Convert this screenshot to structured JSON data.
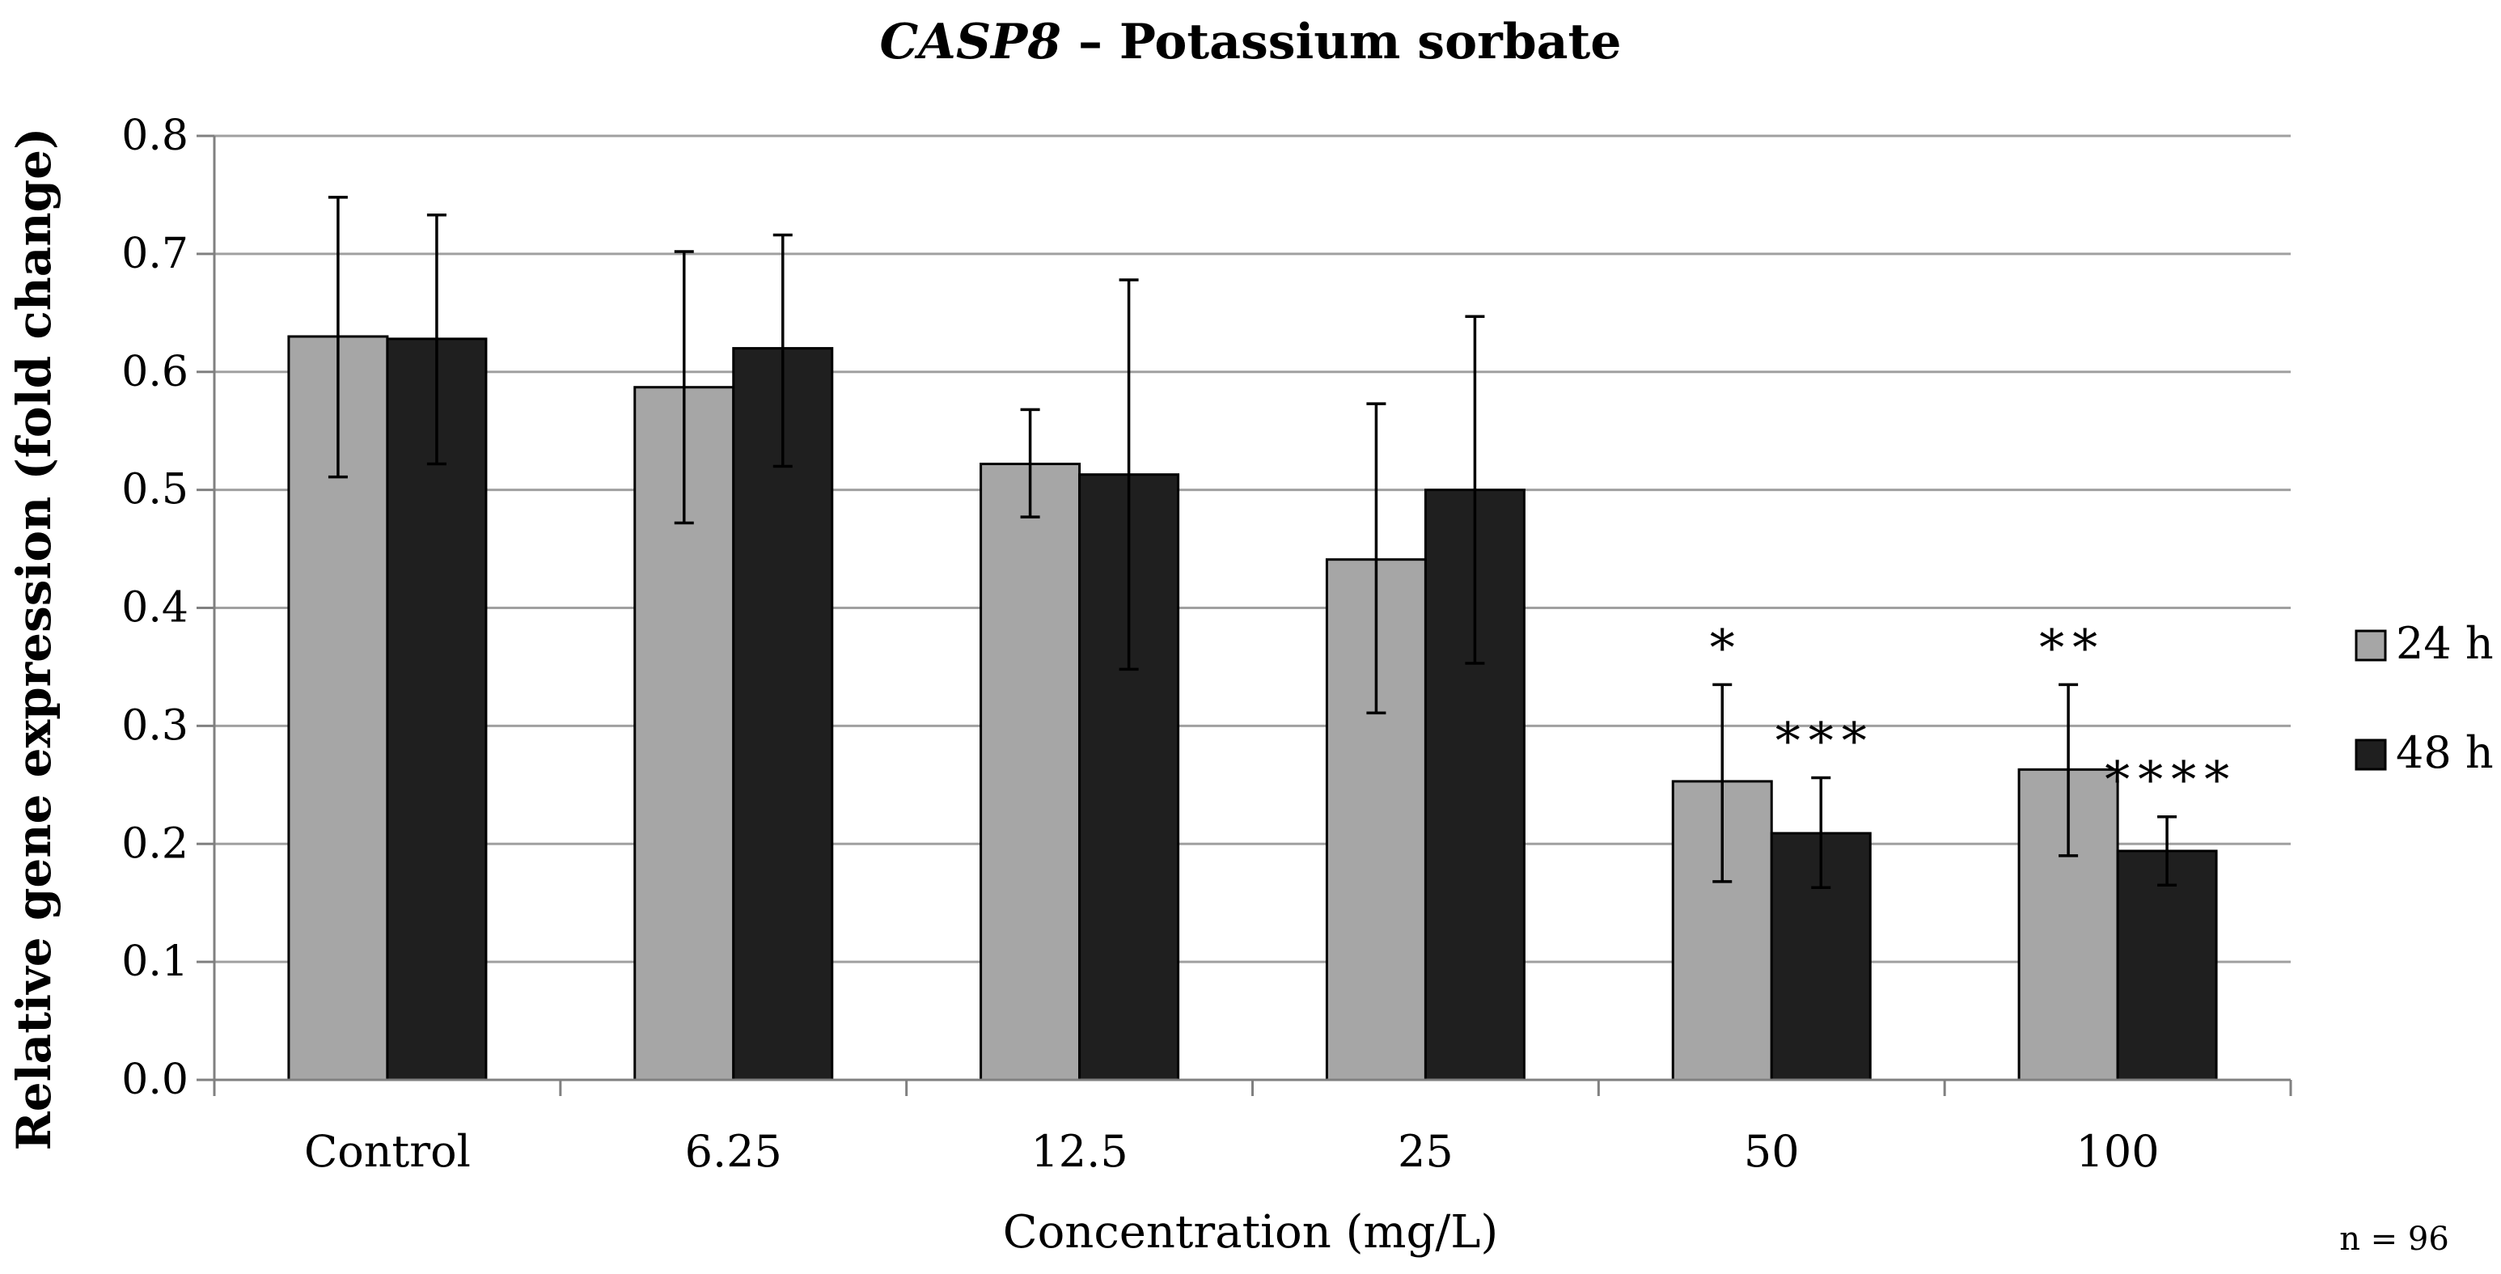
{
  "chart_data": {
    "type": "bar",
    "title_italic": "CASP8",
    "title_rest": " – Potassium sorbate",
    "xlabel": "Concentration (mg/L)",
    "ylabel": "Relative gene expression (fold change)",
    "categories": [
      "Control",
      "6.25",
      "12.5",
      "25",
      "50",
      "100"
    ],
    "ylim": [
      0,
      0.8
    ],
    "yticks": [
      "0.0",
      "0.1",
      "0.2",
      "0.3",
      "0.4",
      "0.5",
      "0.6",
      "0.7",
      "0.8"
    ],
    "grid": true,
    "legend_position": "right",
    "series": [
      {
        "name": "24 h",
        "color": "#a6a6a6",
        "values": [
          0.63,
          0.587,
          0.522,
          0.441,
          0.253,
          0.263
        ],
        "err_high": [
          0.748,
          0.702,
          0.568,
          0.573,
          0.335,
          0.335
        ],
        "err_low": [
          0.511,
          0.472,
          0.477,
          0.311,
          0.168,
          0.19
        ],
        "significance": [
          "",
          "",
          "",
          "",
          "*",
          "**"
        ]
      },
      {
        "name": "48 h",
        "color": "#1f1f1f",
        "values": [
          0.628,
          0.62,
          0.513,
          0.5,
          0.209,
          0.194
        ],
        "err_high": [
          0.733,
          0.716,
          0.678,
          0.647,
          0.256,
          0.223
        ],
        "err_low": [
          0.522,
          0.52,
          0.348,
          0.353,
          0.163,
          0.165
        ],
        "significance": [
          "",
          "",
          "",
          "",
          "***",
          "****"
        ]
      }
    ],
    "note": "n = 96"
  }
}
